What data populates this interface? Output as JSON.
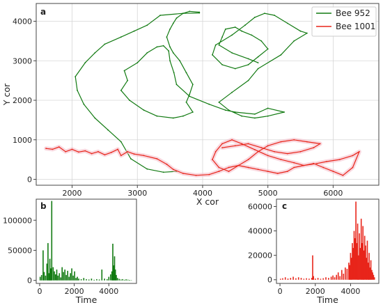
{
  "chart_data": [
    {
      "type": "line",
      "panel": "a",
      "xlabel": "X cor",
      "ylabel": "Y cor",
      "xlim": [
        1450,
        6700
      ],
      "ylim": [
        -150,
        4450
      ],
      "xticks": [
        2000,
        3000,
        4000,
        5000,
        6000
      ],
      "yticks": [
        0,
        1000,
        2000,
        3000,
        4000
      ],
      "grid": true,
      "legend_position": "top-right",
      "series": [
        {
          "name": "Bee 952",
          "color": "#117a11",
          "x": [
            3600,
            3400,
            3150,
            2900,
            2750,
            2550,
            2350,
            2180,
            2080,
            2050,
            2200,
            2350,
            2500,
            2750,
            2950,
            3150,
            3350,
            3700,
            3950,
            3950,
            3800,
            3700,
            3600,
            3550,
            3500,
            3450,
            3500,
            3550,
            3650,
            3750,
            3850,
            3800,
            3750,
            3850,
            3700,
            3550,
            3300,
            3100,
            2880,
            2750,
            2850,
            2800,
            3000,
            3150,
            3300,
            3400,
            3480,
            3500,
            3560,
            3600,
            3800,
            4100,
            4350,
            4500,
            4800,
            5000,
            5250,
            5000,
            4800,
            4600,
            4400,
            4250,
            4450,
            4700,
            4850,
            5200,
            5400,
            5600,
            5500,
            5300,
            5100,
            4950,
            4800,
            4650,
            4450,
            4200,
            4150,
            4300,
            4500,
            4700,
            4850,
            5000,
            4900,
            4750,
            4600,
            4500,
            4350,
            4300,
            4250,
            4450,
            4700,
            4850
          ],
          "y": [
            200,
            180,
            260,
            520,
            950,
            1250,
            1550,
            1900,
            2250,
            2600,
            2950,
            3200,
            3420,
            3600,
            3750,
            3900,
            4150,
            4200,
            4210,
            4230,
            4250,
            4200,
            4080,
            3950,
            3800,
            3600,
            3350,
            3200,
            3000,
            2700,
            2400,
            2150,
            1950,
            1700,
            1600,
            1550,
            1600,
            1750,
            2000,
            2250,
            2500,
            2750,
            2950,
            3200,
            3350,
            3380,
            3250,
            3000,
            2700,
            2400,
            2100,
            1900,
            1750,
            1700,
            1650,
            1800,
            1700,
            1600,
            1550,
            1600,
            1750,
            1950,
            2200,
            2500,
            2800,
            3150,
            3500,
            3700,
            3750,
            3950,
            4150,
            4200,
            4100,
            3900,
            3650,
            3400,
            3150,
            2900,
            2800,
            2900,
            3100,
            3300,
            3500,
            3650,
            3750,
            3850,
            3800,
            3600,
            3400,
            3200,
            3050,
            2950
          ]
        },
        {
          "name": "Bee 1001",
          "color": "#e8251a",
          "x": [
            1600,
            1700,
            1800,
            1900,
            2000,
            2100,
            2200,
            2300,
            2400,
            2500,
            2600,
            2700,
            2750,
            2850,
            2950,
            3100,
            3300,
            3450,
            3550,
            3700,
            3900,
            4100,
            4250,
            4400,
            4550,
            4700,
            4850,
            5000,
            5150,
            5300,
            5400,
            5550,
            5700,
            5850,
            6000,
            6150,
            6300,
            6400,
            6300,
            6100,
            5900,
            5750,
            5550,
            5400,
            5200,
            5000,
            4800,
            4600,
            4450,
            4300,
            4200,
            4150,
            4250,
            4400,
            4550,
            4700,
            4850,
            5000,
            5200,
            5400,
            5600,
            5800,
            5700,
            5500,
            5300,
            5100,
            4900,
            4700,
            4500,
            4300
          ],
          "y": [
            780,
            760,
            820,
            700,
            760,
            690,
            720,
            650,
            700,
            620,
            680,
            760,
            600,
            700,
            640,
            600,
            520,
            380,
            250,
            150,
            100,
            120,
            200,
            300,
            350,
            300,
            250,
            200,
            150,
            200,
            300,
            350,
            400,
            300,
            200,
            100,
            300,
            700,
            600,
            500,
            450,
            400,
            350,
            420,
            500,
            600,
            750,
            900,
            1000,
            900,
            700,
            500,
            300,
            200,
            350,
            500,
            700,
            850,
            950,
            1000,
            950,
            900,
            800,
            700,
            650,
            700,
            800,
            900,
            850,
            800
          ]
        }
      ]
    },
    {
      "type": "bar",
      "panel": "b",
      "xlabel": "Time",
      "ylabel": "",
      "xlim": [
        -200,
        5600
      ],
      "ylim": [
        -5000,
        135000
      ],
      "xticks": [
        0,
        2000,
        4000
      ],
      "yticks": [
        0,
        50000,
        100000
      ],
      "color": "#117a11",
      "x": [
        30,
        110,
        200,
        260,
        340,
        420,
        480,
        540,
        590,
        640,
        700,
        780,
        850,
        920,
        990,
        1060,
        1140,
        1220,
        1300,
        1380,
        1460,
        1540,
        1620,
        1700,
        1780,
        1860,
        1940,
        2020,
        2100,
        2180,
        2260,
        2400,
        2550,
        2700,
        2850,
        3000,
        3150,
        3300,
        3450,
        3600,
        3750,
        3900,
        4000,
        4100,
        4180,
        4230,
        4280,
        4330,
        4380,
        4430,
        4500,
        4600,
        4700,
        4800,
        4900,
        5000,
        5100,
        5200,
        5300
      ],
      "y": [
        6000,
        9000,
        50000,
        14000,
        8000,
        28000,
        62000,
        12000,
        36000,
        20000,
        132000,
        22000,
        15000,
        10000,
        18000,
        8000,
        12000,
        5000,
        22000,
        14000,
        18000,
        9000,
        16000,
        6000,
        12000,
        20000,
        8000,
        15000,
        4000,
        6000,
        3000,
        2000,
        4000,
        2000,
        1500,
        3000,
        1000,
        2000,
        1500,
        18000,
        3000,
        2000,
        6000,
        10000,
        15000,
        61000,
        25000,
        40000,
        18000,
        9000,
        4000,
        2500,
        1500,
        2000,
        1000,
        1800,
        1200,
        800,
        500
      ]
    },
    {
      "type": "bar",
      "panel": "c",
      "xlabel": "Time",
      "ylabel": "",
      "xlim": [
        -200,
        5600
      ],
      "ylim": [
        -3000,
        66000
      ],
      "xticks": [
        0,
        2000,
        4000
      ],
      "yticks": [
        0,
        20000,
        40000,
        60000
      ],
      "color": "#e8251a",
      "x": [
        30,
        150,
        300,
        450,
        600,
        750,
        900,
        1050,
        1200,
        1350,
        1500,
        1650,
        1800,
        1850,
        1900,
        2000,
        2150,
        2300,
        2450,
        2600,
        2750,
        2900,
        3000,
        3100,
        3200,
        3300,
        3400,
        3500,
        3600,
        3700,
        3800,
        3900,
        3950,
        4000,
        4050,
        4100,
        4150,
        4200,
        4250,
        4300,
        4350,
        4400,
        4450,
        4500,
        4550,
        4600,
        4650,
        4700,
        4750,
        4800,
        4850,
        4900,
        4950,
        5000,
        5050,
        5100,
        5150,
        5200,
        5250,
        5300,
        5350
      ],
      "y": [
        800,
        1200,
        2000,
        1000,
        1500,
        2500,
        1200,
        2000,
        1500,
        800,
        1200,
        900,
        1500,
        20000,
        3000,
        1000,
        1500,
        800,
        1200,
        2000,
        1500,
        2500,
        3500,
        2000,
        4000,
        6000,
        3000,
        8000,
        5000,
        10000,
        9000,
        14000,
        12000,
        22000,
        18000,
        30000,
        26000,
        40000,
        34000,
        64000,
        30000,
        46000,
        20000,
        38000,
        26000,
        50000,
        30000,
        44000,
        24000,
        36000,
        28000,
        18000,
        32000,
        14000,
        22000,
        10000,
        16000,
        8000,
        6000,
        4000,
        2000
      ]
    }
  ]
}
